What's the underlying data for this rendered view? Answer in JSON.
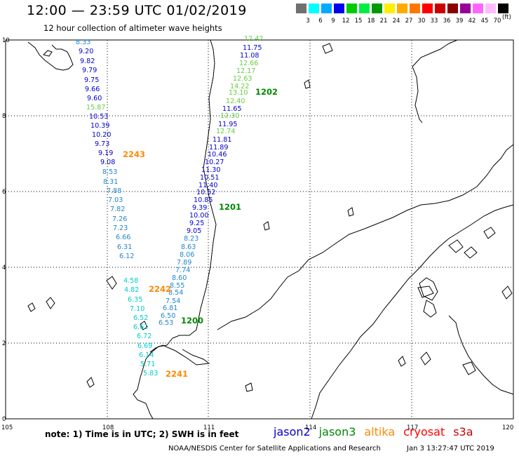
{
  "header": {
    "title": "12:00 — 23:59 UTC 01/02/2019",
    "subtitle": "12 hour collection of altimeter wave heights"
  },
  "colorbar": {
    "labels": [
      "3",
      "6",
      "9",
      "12",
      "15",
      "18",
      "21",
      "24",
      "27",
      "30",
      "33",
      "36",
      "39",
      "42",
      "45",
      "70"
    ],
    "colors": [
      "#707070",
      "#00ffff",
      "#00aaff",
      "#0000ee",
      "#00cc00",
      "#00ee44",
      "#009900",
      "#ffee00",
      "#ffaa00",
      "#ff7700",
      "#ff0000",
      "#cc0000",
      "#8b0000",
      "#990099",
      "#ff66ff",
      "#ffbbff",
      "#000000"
    ],
    "unit": "(ft)"
  },
  "map": {
    "lon_labels": [
      "105",
      "108",
      "111",
      "114",
      "117",
      "120"
    ],
    "lat_labels": [
      "0",
      "2",
      "4",
      "6",
      "8",
      "10"
    ],
    "colors": {
      "jason2": "#0000cc",
      "jason3": "#008800",
      "altika": "#ff8800",
      "cryosat": "#ff0000",
      "s3a": "#cc0000",
      "light_green": "#66cc44",
      "cyan": "#00cccc",
      "light_blue": "#2288cc"
    },
    "track_times": [
      {
        "id": "t2243",
        "text": "2243",
        "color": "#ff8800"
      },
      {
        "id": "t2242",
        "text": "2242",
        "color": "#ff8800"
      },
      {
        "id": "t2241",
        "text": "2241",
        "color": "#ff8800"
      },
      {
        "id": "t1202",
        "text": "1202",
        "color": "#008800"
      },
      {
        "id": "t1201",
        "text": "1201",
        "color": "#008800"
      },
      {
        "id": "t1200",
        "text": "1200",
        "color": "#008800"
      }
    ],
    "track_a_values": [
      "8.33",
      "9.20",
      "9.82",
      "9.79",
      "9.75",
      "9.66",
      "9.60",
      "15.87",
      "10.53",
      "10.39",
      "10.20",
      "9.73",
      "9.19",
      "9.08",
      "8.53",
      "8.31",
      "7.88",
      "7.03",
      "7.82",
      "7.26",
      "7.23",
      "6.66",
      "6.31",
      "6.12"
    ],
    "track_a_colors": [
      "#2288cc",
      "#0000cc",
      "#0000cc",
      "#0000cc",
      "#0000cc",
      "#0000cc",
      "#0000cc",
      "#66cc44",
      "#0000cc",
      "#0000cc",
      "#0000cc",
      "#0000cc",
      "#0000cc",
      "#0000cc",
      "#2288cc",
      "#2288cc",
      "#2288cc",
      "#2288cc",
      "#2288cc",
      "#2288cc",
      "#2288cc",
      "#2288cc",
      "#2288cc",
      "#2288cc"
    ],
    "track_b_values": [
      "4.58",
      "4.82",
      "6.35",
      "7.10",
      "6.52",
      "6.61",
      "6.72",
      "6.69",
      "6.14",
      "5.71",
      "5.83"
    ],
    "track_c_values": [
      "12.42",
      "11.75",
      "11.08",
      "12.66",
      "12.17",
      "12.63",
      "14.22",
      "13.10",
      "12.40",
      "11.65",
      "12.30",
      "11.95",
      "12.74",
      "11.81",
      "11.89",
      "10.46",
      "10.27",
      "11.30",
      "10.51",
      "11.40",
      "10.52",
      "10.85",
      "9.39",
      "10.00",
      "9.25",
      "9.05",
      "8.23",
      "8.63",
      "8.06",
      "7.89",
      "7.74",
      "8.60",
      "8.55",
      "8.54",
      "7.54",
      "6.81",
      "6.50",
      "6.53"
    ],
    "track_c_colors": [
      "#66cc44",
      "#0000cc",
      "#0000cc",
      "#66cc44",
      "#66cc44",
      "#66cc44",
      "#66cc44",
      "#66cc44",
      "#66cc44",
      "#0000cc",
      "#66cc44",
      "#0000cc",
      "#66cc44",
      "#0000cc",
      "#0000cc",
      "#0000cc",
      "#0000cc",
      "#0000cc",
      "#0000cc",
      "#0000cc",
      "#0000cc",
      "#0000cc",
      "#0000cc",
      "#0000cc",
      "#0000cc",
      "#0000cc",
      "#2288cc",
      "#2288cc",
      "#2288cc",
      "#2288cc",
      "#2288cc",
      "#2288cc",
      "#2288cc",
      "#2288cc",
      "#2288cc",
      "#2288cc",
      "#2288cc",
      "#2288cc"
    ]
  },
  "footer": {
    "note": "note: 1) Time is in UTC; 2) SWH is in feet",
    "satellites": [
      {
        "name": "jason2",
        "color": "#0000cc"
      },
      {
        "name": "jason3",
        "color": "#008800"
      },
      {
        "name": "altika",
        "color": "#ff8800"
      },
      {
        "name": "cryosat",
        "color": "#ff0000"
      },
      {
        "name": "s3a",
        "color": "#cc0000"
      }
    ],
    "credit": "NOAA/NESDIS Center for Satellite Applications and Research",
    "timestamp": "Jan  3 13:27:47 UTC 2019"
  }
}
